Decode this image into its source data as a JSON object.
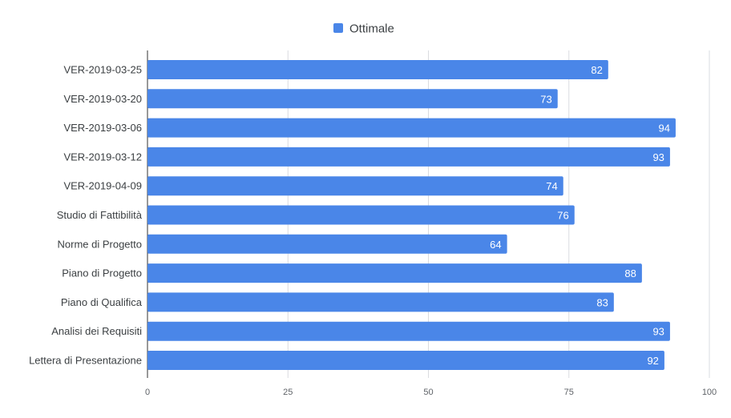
{
  "chart_data": {
    "type": "bar",
    "orientation": "horizontal",
    "title": "",
    "xlabel": "",
    "ylabel": "",
    "categories": [
      "VER-2019-03-25",
      "VER-2019-03-20",
      "VER-2019-03-06",
      "VER-2019-03-12",
      "VER-2019-04-09",
      "Studio di Fattibilità",
      "Norme di Progetto",
      "Piano di Progetto",
      "Piano di Qualifica",
      "Analisi dei Requisiti",
      "Lettera di Presentazione"
    ],
    "series": [
      {
        "name": "Ottimale",
        "color": "#4a86e8",
        "values": [
          82,
          73,
          94,
          93,
          74,
          76,
          64,
          88,
          83,
          93,
          92
        ]
      }
    ],
    "xlim": [
      0,
      100
    ],
    "ticks": [
      0,
      25,
      50,
      75,
      100
    ],
    "grid": true,
    "legend_position": "top-center",
    "data_labels": true
  }
}
